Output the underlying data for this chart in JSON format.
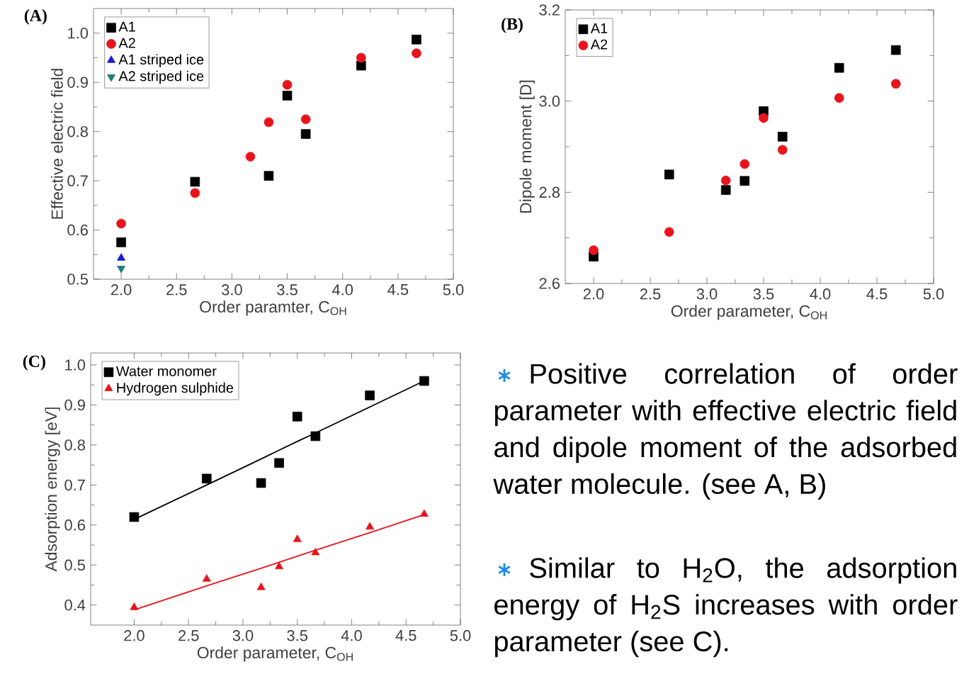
{
  "chart_data": [
    {
      "type": "scatter",
      "title": "(A)",
      "xlabel": "Order paramter, C$_{OH}$",
      "ylabel": "Effective electric field",
      "x": [
        2.0,
        2.667,
        3.167,
        3.333,
        3.5,
        3.667,
        4.167,
        4.667
      ],
      "xlim": [
        1.75,
        5.0
      ],
      "ylim": [
        0.5,
        1.05
      ],
      "xticks": [
        {
          "value": 2.0,
          "label": "2.0"
        },
        {
          "value": 2.5,
          "label": "2.5"
        },
        {
          "value": 3.0,
          "label": "3.0"
        },
        {
          "value": 3.5,
          "label": "3.5"
        },
        {
          "value": 4.0,
          "label": "4.0"
        },
        {
          "value": 4.5,
          "label": "4.5"
        },
        {
          "value": 5.0,
          "label": "5.0"
        }
      ],
      "yticks": [
        {
          "value": 0.5,
          "label": "0.5"
        },
        {
          "value": 0.6,
          "label": "0.6"
        },
        {
          "value": 0.7,
          "label": "0.7"
        },
        {
          "value": 0.8,
          "label": "0.8"
        },
        {
          "value": 0.9,
          "label": "0.9"
        },
        {
          "value": 1.0,
          "label": "1.0"
        }
      ],
      "legend": "top left",
      "series": [
        {
          "name": "A1",
          "color": "#000000",
          "marker": "square",
          "values": [
            0.575,
            0.698,
            null,
            0.71,
            0.873,
            0.795,
            0.934,
            0.987
          ]
        },
        {
          "name": "A2",
          "color": "#e8141c",
          "marker": "circle",
          "values": [
            0.613,
            0.675,
            0.749,
            0.819,
            0.895,
            0.825,
            0.95,
            0.959
          ]
        },
        {
          "name": "A1 striped ice",
          "color": "#1a1ad6",
          "marker": "triangle",
          "values": [
            0.543,
            null,
            null,
            null,
            null,
            null,
            null,
            null
          ]
        },
        {
          "name": "A2 striped ice",
          "color": "#1a7f7f",
          "marker": "triangle down",
          "values": [
            0.522,
            null,
            null,
            null,
            null,
            null,
            null,
            null
          ]
        }
      ]
    },
    {
      "type": "scatter",
      "title": "(B)",
      "xlabel": "Order parameter, C$_{OH}$",
      "ylabel": "Dipole moment [D]",
      "x": [
        2.0,
        2.667,
        3.167,
        3.333,
        3.5,
        3.667,
        4.167,
        4.667
      ],
      "xlim": [
        1.75,
        5.0
      ],
      "ylim": [
        2.6,
        3.2
      ],
      "xticks": [
        {
          "value": 2.0,
          "label": "2.0"
        },
        {
          "value": 2.5,
          "label": "2.5"
        },
        {
          "value": 3.0,
          "label": "3.0"
        },
        {
          "value": 3.5,
          "label": "3.5"
        },
        {
          "value": 4.0,
          "label": "4.0"
        },
        {
          "value": 4.5,
          "label": "4.5"
        },
        {
          "value": 5.0,
          "label": "5.0"
        }
      ],
      "yticks": [
        {
          "value": 2.6,
          "label": "2.6"
        },
        {
          "value": 2.8,
          "label": "2.8"
        },
        {
          "value": 3.0,
          "label": "3.0"
        },
        {
          "value": 3.2,
          "label": "3.2"
        }
      ],
      "legend": "top left",
      "series": [
        {
          "name": "A1",
          "color": "#000000",
          "marker": "square",
          "values": [
            2.659,
            2.839,
            2.805,
            2.825,
            2.978,
            2.922,
            3.073,
            3.112
          ]
        },
        {
          "name": "A2",
          "color": "#e8141c",
          "marker": "circle",
          "values": [
            2.673,
            2.713,
            2.826,
            2.862,
            2.963,
            2.893,
            3.007,
            3.038
          ]
        }
      ]
    },
    {
      "type": "scatter",
      "title": "(C)",
      "xlabel": "Order parameter, C$_{OH}$",
      "ylabel": "Adsorption energy [eV]",
      "x": [
        2.0,
        2.667,
        3.167,
        3.333,
        3.5,
        3.667,
        4.167,
        4.667
      ],
      "xlim": [
        1.6,
        5.0
      ],
      "ylim": [
        0.35,
        1.03
      ],
      "xticks": [
        {
          "value": 2.0,
          "label": "2.0"
        },
        {
          "value": 2.5,
          "label": "2.5"
        },
        {
          "value": 3.0,
          "label": "3.0"
        },
        {
          "value": 3.5,
          "label": "3.5"
        },
        {
          "value": 4.0,
          "label": "4.0"
        },
        {
          "value": 4.5,
          "label": "4.5"
        },
        {
          "value": 5.0,
          "label": "5.0"
        }
      ],
      "yticks": [
        {
          "value": 0.4,
          "label": "0.4"
        },
        {
          "value": 0.5,
          "label": "0.5"
        },
        {
          "value": 0.6,
          "label": "0.6"
        },
        {
          "value": 0.7,
          "label": "0.7"
        },
        {
          "value": 0.8,
          "label": "0.8"
        },
        {
          "value": 0.9,
          "label": "0.9"
        },
        {
          "value": 1.0,
          "label": "1.0"
        }
      ],
      "legend": "top left",
      "series": [
        {
          "name": "Water monomer",
          "color": "#000000",
          "marker": "square",
          "values": [
            0.62,
            0.716,
            0.705,
            0.755,
            0.871,
            0.822,
            0.924,
            0.96
          ]
        },
        {
          "name": "Hydrogen sulphide",
          "color": "#e8141c",
          "marker": "triangle",
          "values": [
            0.394,
            0.465,
            0.444,
            0.496,
            0.564,
            0.531,
            0.595,
            0.627
          ]
        },
        {
          "type": "line",
          "color": "#000000",
          "values": [
            0.614,
            0.7,
            0.765,
            0.787,
            0.809,
            0.83,
            0.895,
            0.96
          ]
        },
        {
          "type": "line",
          "color": "#e8141c",
          "values": [
            0.388,
            0.448,
            0.492,
            0.507,
            0.522,
            0.537,
            0.581,
            0.626
          ]
        }
      ]
    },
    {
      "type": "other",
      "annotations": [
        "Positive correlation of order parameter with effective electric field and dipole moment of the adsorbed water molecule. (see A, B)",
        "Similar to H$_{2}$O, the adsorption energy of H$_{2}$S increases with order parameter (see C)."
      ]
    }
  ]
}
